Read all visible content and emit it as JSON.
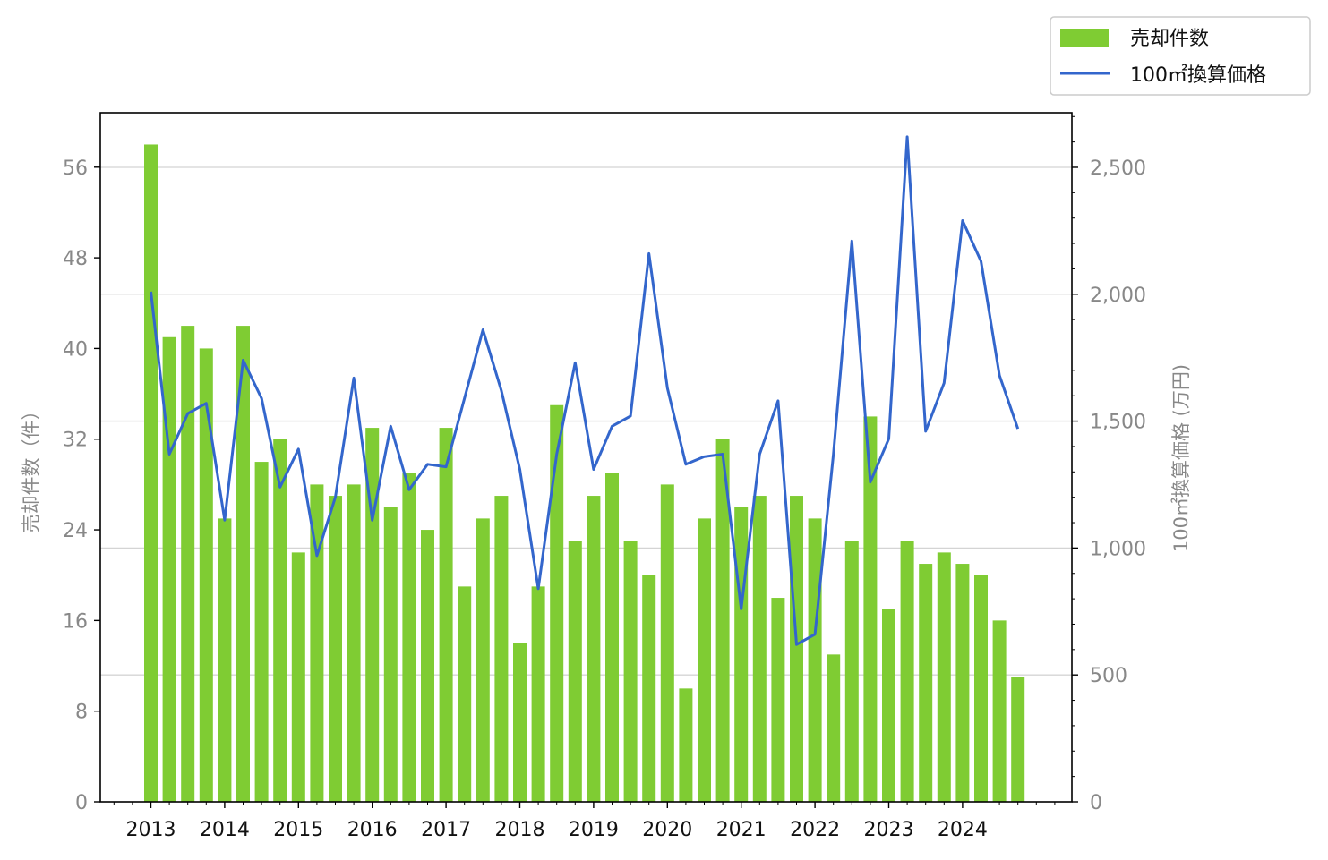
{
  "chart_data": {
    "type": "bar+line",
    "title": "",
    "x": [
      "2013-Q1",
      "2013-Q2",
      "2013-Q3",
      "2013-Q4",
      "2014-Q1",
      "2014-Q2",
      "2014-Q3",
      "2014-Q4",
      "2015-Q1",
      "2015-Q2",
      "2015-Q3",
      "2015-Q4",
      "2016-Q1",
      "2016-Q2",
      "2016-Q3",
      "2016-Q4",
      "2017-Q1",
      "2017-Q2",
      "2017-Q3",
      "2017-Q4",
      "2018-Q1",
      "2018-Q2",
      "2018-Q3",
      "2018-Q4",
      "2019-Q1",
      "2019-Q2",
      "2019-Q3",
      "2019-Q4",
      "2020-Q1",
      "2020-Q2",
      "2020-Q3",
      "2020-Q4",
      "2021-Q1",
      "2021-Q2",
      "2021-Q3",
      "2021-Q4",
      "2022-Q1",
      "2022-Q2",
      "2022-Q3",
      "2022-Q4",
      "2023-Q1",
      "2023-Q2",
      "2023-Q3",
      "2023-Q4",
      "2024-Q1",
      "2024-Q2",
      "2024-Q3",
      "2024-Q4"
    ],
    "xticks": [
      "2013",
      "2014",
      "2015",
      "2016",
      "2017",
      "2018",
      "2019",
      "2020",
      "2021",
      "2022",
      "2023",
      "2024"
    ],
    "series": [
      {
        "name": "売却件数",
        "type": "bar",
        "axis": "left",
        "color": "#7fcc33",
        "values": [
          58,
          41,
          42,
          40,
          25,
          42,
          30,
          32,
          22,
          28,
          27,
          28,
          33,
          26,
          29,
          24,
          33,
          19,
          25,
          27,
          14,
          19,
          35,
          23,
          27,
          29,
          23,
          20,
          28,
          10,
          25,
          32,
          26,
          27,
          18,
          27,
          25,
          13,
          23,
          34,
          17,
          23,
          21,
          22,
          21,
          20,
          16,
          11
        ]
      },
      {
        "name": "100㎡換算価格",
        "type": "line",
        "axis": "right",
        "color": "#3366cc",
        "values": [
          2010,
          1370,
          1530,
          1570,
          1110,
          1740,
          1590,
          1240,
          1390,
          970,
          1200,
          1670,
          1110,
          1480,
          1230,
          1330,
          1320,
          1590,
          1860,
          1620,
          1310,
          840,
          1370,
          1730,
          1310,
          1480,
          1520,
          2160,
          1630,
          1330,
          1360,
          1370,
          760,
          1370,
          1580,
          620,
          660,
          1370,
          2210,
          1260,
          1430,
          2620,
          1460,
          1650,
          2290,
          2130,
          1680,
          1470
        ]
      }
    ],
    "ylabel": "売却件数（件）",
    "ylabel_right": "100㎡換算価格 (万円)",
    "ylim": [
      0,
      60.8
    ],
    "ylim_right": [
      0,
      2715
    ],
    "yticks": [
      0,
      8,
      16,
      24,
      32,
      40,
      48,
      56
    ],
    "yticks_right": [
      0,
      500,
      1000,
      1500,
      2000,
      2500
    ],
    "yticks_right_labels": [
      "0",
      "500",
      "1,000",
      "1,500",
      "2,000",
      "2,500"
    ],
    "grid": "horizontal lines at right-axis ticks",
    "legend_position": "top-right, outside plot"
  }
}
